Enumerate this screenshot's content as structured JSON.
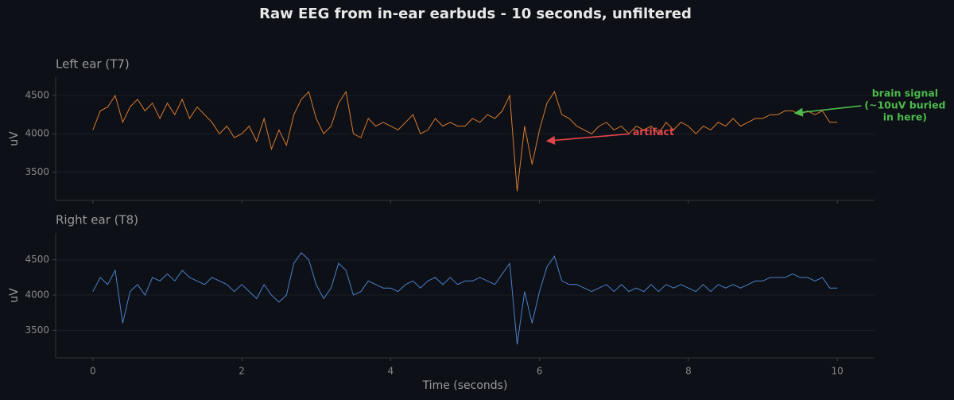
{
  "title": "Raw EEG from in-ear earbuds - 10 seconds, unfiltered",
  "xlabel": "Time (seconds)",
  "chart_data": [
    {
      "type": "line",
      "title": "Left ear (T7)",
      "ylabel": "uV",
      "color": "#d97a2e",
      "xlim": [
        -0.5,
        10.5
      ],
      "xticks": [
        0,
        2,
        4,
        6,
        8,
        10
      ],
      "xtick_labels": false,
      "ylim": [
        3130,
        4740
      ],
      "yticks": [
        3500,
        4000,
        4500
      ],
      "grid": true,
      "x": [
        0,
        0.1,
        0.2,
        0.3,
        0.4,
        0.5,
        0.6,
        0.7,
        0.8,
        0.9,
        1,
        1.1,
        1.2,
        1.3,
        1.4,
        1.5,
        1.6,
        1.7,
        1.8,
        1.9,
        2,
        2.1,
        2.2,
        2.3,
        2.4,
        2.5,
        2.6,
        2.7,
        2.8,
        2.9,
        3,
        3.1,
        3.2,
        3.3,
        3.4,
        3.5,
        3.6,
        3.7,
        3.8,
        3.9,
        4,
        4.1,
        4.2,
        4.3,
        4.4,
        4.5,
        4.6,
        4.7,
        4.8,
        4.9,
        5,
        5.1,
        5.2,
        5.3,
        5.4,
        5.5,
        5.6,
        5.7,
        5.8,
        5.9,
        6,
        6.1,
        6.2,
        6.3,
        6.4,
        6.5,
        6.6,
        6.7,
        6.8,
        6.9,
        7,
        7.1,
        7.2,
        7.3,
        7.4,
        7.5,
        7.6,
        7.7,
        7.8,
        7.9,
        8,
        8.1,
        8.2,
        8.3,
        8.4,
        8.5,
        8.6,
        8.7,
        8.8,
        8.9,
        9,
        9.1,
        9.2,
        9.3,
        9.4,
        9.5,
        9.6,
        9.7,
        9.8,
        9.9,
        10
      ],
      "values": [
        4050,
        4300,
        4350,
        4500,
        4150,
        4350,
        4450,
        4300,
        4400,
        4200,
        4400,
        4250,
        4450,
        4200,
        4350,
        4250,
        4150,
        4000,
        4100,
        3950,
        4000,
        4100,
        3900,
        4200,
        3800,
        4050,
        3850,
        4250,
        4450,
        4550,
        4200,
        4000,
        4100,
        4400,
        4550,
        4000,
        3950,
        4200,
        4100,
        4150,
        4100,
        4050,
        4150,
        4250,
        4000,
        4050,
        4200,
        4100,
        4150,
        4100,
        4100,
        4200,
        4150,
        4250,
        4200,
        4300,
        4500,
        3250,
        4100,
        3600,
        4050,
        4400,
        4550,
        4250,
        4200,
        4100,
        4050,
        4000,
        4100,
        4150,
        4050,
        4100,
        4000,
        4100,
        4050,
        4100,
        4000,
        4150,
        4050,
        4150,
        4100,
        4000,
        4100,
        4050,
        4150,
        4100,
        4200,
        4100,
        4150,
        4200,
        4200,
        4250,
        4250,
        4300,
        4300,
        4250,
        4300,
        4250,
        4300,
        4150,
        4150
      ],
      "annotations": [
        {
          "lines": [
            "artifact"
          ],
          "color": "#e0454a",
          "x": 6.1,
          "y": 3906,
          "xytext": [
            7.53,
            4020
          ]
        },
        {
          "lines": [
            "brain signal",
            "(~10uV buried",
            "in here)"
          ],
          "color": "#4cba4c",
          "x": 9.43,
          "y": 4270,
          "xytext": [
            10.91,
            4365
          ]
        }
      ]
    },
    {
      "type": "line",
      "title": "Right ear (T8)",
      "ylabel": "uV",
      "color": "#4a80c8",
      "xlim": [
        -0.5,
        10.5
      ],
      "xticks": [
        0,
        2,
        4,
        6,
        8,
        10
      ],
      "xtick_labels": true,
      "ylim": [
        3110,
        4880
      ],
      "yticks": [
        3500,
        4000,
        4500
      ],
      "grid": true,
      "x": [
        0,
        0.1,
        0.2,
        0.3,
        0.4,
        0.5,
        0.6,
        0.7,
        0.8,
        0.9,
        1,
        1.1,
        1.2,
        1.3,
        1.4,
        1.5,
        1.6,
        1.7,
        1.8,
        1.9,
        2,
        2.1,
        2.2,
        2.3,
        2.4,
        2.5,
        2.6,
        2.7,
        2.8,
        2.9,
        3,
        3.1,
        3.2,
        3.3,
        3.4,
        3.5,
        3.6,
        3.7,
        3.8,
        3.9,
        4,
        4.1,
        4.2,
        4.3,
        4.4,
        4.5,
        4.6,
        4.7,
        4.8,
        4.9,
        5,
        5.1,
        5.2,
        5.3,
        5.4,
        5.5,
        5.6,
        5.7,
        5.8,
        5.9,
        6,
        6.1,
        6.2,
        6.3,
        6.4,
        6.5,
        6.6,
        6.7,
        6.8,
        6.9,
        7,
        7.1,
        7.2,
        7.3,
        7.4,
        7.5,
        7.6,
        7.7,
        7.8,
        7.9,
        8,
        8.1,
        8.2,
        8.3,
        8.4,
        8.5,
        8.6,
        8.7,
        8.8,
        8.9,
        9,
        9.1,
        9.2,
        9.3,
        9.4,
        9.5,
        9.6,
        9.7,
        9.8,
        9.9,
        10
      ],
      "values": [
        4050,
        4250,
        4150,
        4350,
        3600,
        4050,
        4150,
        4000,
        4250,
        4200,
        4300,
        4200,
        4350,
        4250,
        4200,
        4150,
        4250,
        4200,
        4150,
        4050,
        4150,
        4050,
        3950,
        4150,
        4000,
        3900,
        4000,
        4450,
        4600,
        4500,
        4150,
        3950,
        4100,
        4450,
        4350,
        4000,
        4050,
        4200,
        4150,
        4100,
        4100,
        4050,
        4150,
        4200,
        4100,
        4200,
        4250,
        4150,
        4250,
        4150,
        4200,
        4200,
        4250,
        4200,
        4150,
        4300,
        4450,
        3300,
        4050,
        3600,
        4050,
        4400,
        4550,
        4200,
        4150,
        4150,
        4100,
        4050,
        4100,
        4150,
        4050,
        4150,
        4050,
        4100,
        4050,
        4150,
        4050,
        4150,
        4100,
        4150,
        4100,
        4050,
        4150,
        4050,
        4150,
        4100,
        4150,
        4100,
        4150,
        4200,
        4200,
        4250,
        4250,
        4250,
        4300,
        4250,
        4250,
        4200,
        4250,
        4100,
        4100
      ]
    }
  ]
}
